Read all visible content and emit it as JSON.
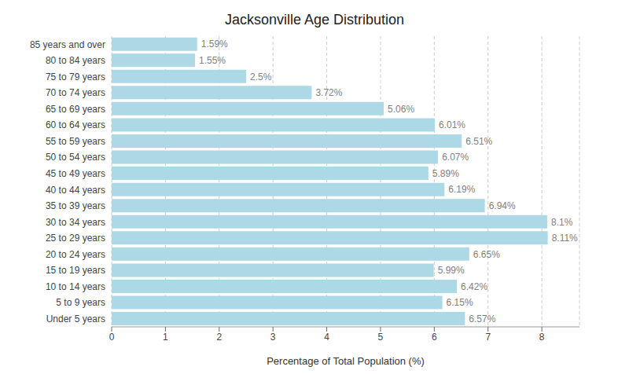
{
  "chart_data": {
    "type": "bar",
    "orientation": "horizontal",
    "title": "Jacksonville Age Distribution",
    "xlabel": "Percentage of Total Population (%)",
    "categories": [
      "85 years and over",
      "80 to 84 years",
      "75 to 79 years",
      "70 to 74 years",
      "65 to 69 years",
      "60 to 64 years",
      "55 to 59 years",
      "50 to 54 years",
      "45 to 49 years",
      "40 to 44 years",
      "35 to 39 years",
      "30 to 34 years",
      "25 to 29 years",
      "20 to 24 years",
      "15 to 19 years",
      "10 to 14 years",
      "5 to 9 years",
      "Under 5 years"
    ],
    "values": [
      1.59,
      1.55,
      2.5,
      3.72,
      5.06,
      6.01,
      6.51,
      6.07,
      5.89,
      6.19,
      6.94,
      8.1,
      8.11,
      6.65,
      5.99,
      6.42,
      6.15,
      6.57
    ],
    "value_labels": [
      "1.59%",
      "1.55%",
      "2.5%",
      "3.72%",
      "5.06%",
      "6.01%",
      "6.51%",
      "6.07%",
      "5.89%",
      "6.19%",
      "6.94%",
      "8.1%",
      "8.11%",
      "6.65%",
      "5.99%",
      "6.42%",
      "6.15%",
      "6.57%"
    ],
    "color": "#add8e6",
    "xlim": [
      0,
      8.7
    ],
    "xticks": [
      0,
      1,
      2,
      3,
      4,
      5,
      6,
      7,
      8
    ],
    "grid": true,
    "data_labels": true
  }
}
